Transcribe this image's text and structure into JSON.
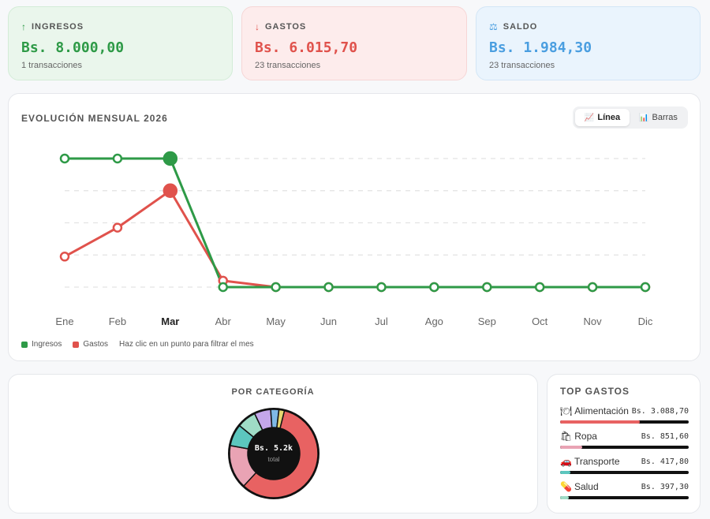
{
  "kpis": {
    "ingresos": {
      "icon": "↑",
      "label": "INGRESOS",
      "value": "Bs. 8.000,00",
      "sub": "1 transacciones",
      "color": "#2e9a47"
    },
    "gastos": {
      "icon": "↓",
      "label": "GASTOS",
      "value": "Bs. 6.015,70",
      "sub": "23 transacciones",
      "color": "#e0524c"
    },
    "saldo": {
      "icon": "⚖",
      "label": "SALDO",
      "value": "Bs. 1.984,30",
      "sub": "23 transacciones",
      "color": "#4a9ee0"
    }
  },
  "evolution": {
    "title": "EVOLUCIÓN MENSUAL 2026",
    "toggle": {
      "line_label": "Línea",
      "bars_label": "Barras",
      "selected": "line"
    },
    "legend": {
      "ingresos": "Ingresos",
      "gastos": "Gastos",
      "hint": "Haz clic en un punto para filtrar el mes"
    }
  },
  "chart_data": {
    "type": "line",
    "categories": [
      "Ene",
      "Feb",
      "Mar",
      "Abr",
      "May",
      "Jun",
      "Jul",
      "Ago",
      "Sep",
      "Oct",
      "Nov",
      "Dic"
    ],
    "highlighted": "Mar",
    "series": [
      {
        "name": "Ingresos",
        "color": "#2e9a47",
        "values": [
          8000,
          8000,
          8000,
          0,
          0,
          0,
          0,
          0,
          0,
          0,
          0,
          0
        ]
      },
      {
        "name": "Gastos",
        "color": "#e0524c",
        "values": [
          1900,
          3700,
          6000,
          400,
          0,
          0,
          0,
          0,
          0,
          0,
          0,
          0
        ]
      }
    ],
    "ylim": [
      0,
      8000
    ],
    "grid": true
  },
  "categories": {
    "title": "POR CATEGORÍA",
    "center_value": "Bs. 5.2k",
    "center_label": "total",
    "slices": [
      {
        "value": 58,
        "color": "#e86262"
      },
      {
        "value": 16,
        "color": "#e9a3b4"
      },
      {
        "value": 8,
        "color": "#5cc6be"
      },
      {
        "value": 7,
        "color": "#9fdcc6"
      },
      {
        "value": 6,
        "color": "#c4a7ea"
      },
      {
        "value": 3,
        "color": "#7fb9e6"
      },
      {
        "value": 2,
        "color": "#e8d870"
      }
    ]
  },
  "top_gastos": {
    "title": "TOP GASTOS",
    "items": [
      {
        "icon": "🍽",
        "name": "Alimentación",
        "amount": "Bs. 3.088,70",
        "share": 0.62,
        "color": "#e86262"
      },
      {
        "icon": "🛍",
        "name": "Ropa",
        "amount": "Bs. 851,60",
        "share": 0.17,
        "color": "#e9a3b4"
      },
      {
        "icon": "🚗",
        "name": "Transporte",
        "amount": "Bs. 417,80",
        "share": 0.08,
        "color": "#5cc6be"
      },
      {
        "icon": "💊",
        "name": "Salud",
        "amount": "Bs. 397,30",
        "share": 0.07,
        "color": "#9fdcc6"
      }
    ]
  }
}
